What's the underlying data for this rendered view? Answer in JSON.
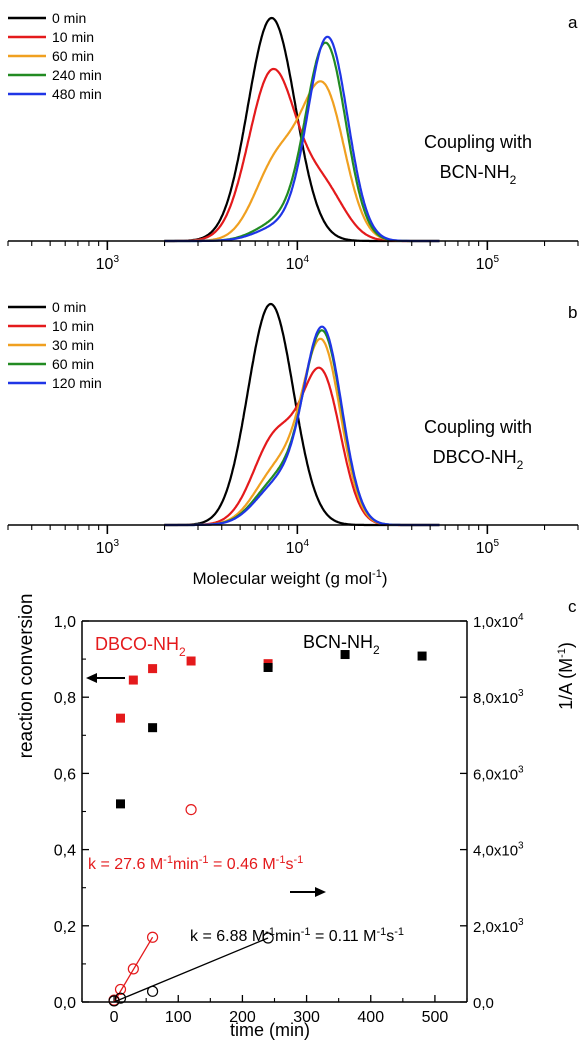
{
  "chart_data": [
    {
      "type": "line",
      "panel_label": "a",
      "annotation_line1": "Coupling with",
      "annotation_line2_base": "BCN-NH",
      "annotation_line2_sub": "2",
      "x_scale": "log",
      "xlim": [
        300,
        300000
      ],
      "x_ticks": [
        {
          "value": 1000,
          "base": "10",
          "exp": "3"
        },
        {
          "value": 10000,
          "base": "10",
          "exp": "4"
        },
        {
          "value": 100000,
          "base": "10",
          "exp": "5"
        }
      ],
      "x_log_peak_units": "log10 of molecular weight in g/mol",
      "series": [
        {
          "name": "0 min",
          "color": "#000000",
          "peaks": [
            {
              "mu": 3.865,
              "sigma": 0.125,
              "h": 1.0
            }
          ]
        },
        {
          "name": "10 min",
          "color": "#e41a1c",
          "peaks": [
            {
              "mu": 3.87,
              "sigma": 0.125,
              "h": 0.76
            },
            {
              "mu": 4.14,
              "sigma": 0.11,
              "h": 0.22
            }
          ]
        },
        {
          "name": "60 min",
          "color": "#f0a020",
          "peaks": [
            {
              "mu": 3.9,
              "sigma": 0.12,
              "h": 0.36
            },
            {
              "mu": 4.14,
              "sigma": 0.11,
              "h": 0.66
            }
          ]
        },
        {
          "name": "240 min",
          "color": "#228b22",
          "peaks": [
            {
              "mu": 3.9,
              "sigma": 0.12,
              "h": 0.08
            },
            {
              "mu": 4.15,
              "sigma": 0.105,
              "h": 0.88
            }
          ]
        },
        {
          "name": "480 min",
          "color": "#1f35e6",
          "peaks": [
            {
              "mu": 3.9,
              "sigma": 0.12,
              "h": 0.06
            },
            {
              "mu": 4.16,
              "sigma": 0.105,
              "h": 0.91
            }
          ]
        }
      ]
    },
    {
      "type": "line",
      "panel_label": "b",
      "annotation_line1": "Coupling with",
      "annotation_line2_base": "DBCO-NH",
      "annotation_line2_sub": "2",
      "x_scale": "log",
      "xlim": [
        300,
        300000
      ],
      "x_ticks": [
        {
          "value": 1000,
          "base": "10",
          "exp": "3"
        },
        {
          "value": 10000,
          "base": "10",
          "exp": "4"
        },
        {
          "value": 100000,
          "base": "10",
          "exp": "5"
        }
      ],
      "xlabel_base": "Molecular weight (g mol",
      "xlabel_exp": "-1",
      "xlabel_close": ")",
      "x_log_peak_units": "log10 of molecular weight in g/mol",
      "series": [
        {
          "name": "0 min",
          "color": "#000000",
          "peaks": [
            {
              "mu": 3.86,
              "sigma": 0.12,
              "h": 1.0
            }
          ]
        },
        {
          "name": "10 min",
          "color": "#e41a1c",
          "peaks": [
            {
              "mu": 3.89,
              "sigma": 0.12,
              "h": 0.4
            },
            {
              "mu": 4.13,
              "sigma": 0.1,
              "h": 0.65
            }
          ]
        },
        {
          "name": "30 min",
          "color": "#f0a020",
          "peaks": [
            {
              "mu": 3.9,
              "sigma": 0.12,
              "h": 0.25
            },
            {
              "mu": 4.13,
              "sigma": 0.1,
              "h": 0.8
            }
          ]
        },
        {
          "name": "60 min",
          "color": "#228b22",
          "peaks": [
            {
              "mu": 3.9,
              "sigma": 0.12,
              "h": 0.2
            },
            {
              "mu": 4.135,
              "sigma": 0.1,
              "h": 0.85
            }
          ]
        },
        {
          "name": "120 min",
          "color": "#1f35e6",
          "peaks": [
            {
              "mu": 3.9,
              "sigma": 0.12,
              "h": 0.18
            },
            {
              "mu": 4.135,
              "sigma": 0.1,
              "h": 0.87
            }
          ]
        }
      ]
    },
    {
      "type": "scatter",
      "panel_label": "c",
      "xlabel": "time (min)",
      "ylabel": "reaction conversion",
      "y2label_base": "1/A (M",
      "y2label_exp": "-1",
      "y2label_close": ")",
      "xlim": [
        -50,
        550
      ],
      "ylim": [
        0,
        1.0
      ],
      "y2lim": [
        0,
        10000
      ],
      "x_ticks": [
        "0",
        "100",
        "200",
        "300",
        "400",
        "500"
      ],
      "y_ticks": [
        "0,0",
        "0,2",
        "0,4",
        "0,6",
        "0,8",
        "1,0"
      ],
      "y2_ticks": [
        {
          "base": "0,0",
          "exp": ""
        },
        {
          "base": "2,0x10",
          "exp": "3"
        },
        {
          "base": "4,0x10",
          "exp": "3"
        },
        {
          "base": "6,0x10",
          "exp": "3"
        },
        {
          "base": "8,0x10",
          "exp": "3"
        },
        {
          "base": "1,0x10",
          "exp": "4"
        }
      ],
      "label_dbco_base": "DBCO-NH",
      "label_dbco_sub": "2",
      "label_bcn_base": "BCN-NH",
      "label_bcn_sub": "2",
      "series": [
        {
          "name": "DBCO-NH2 conversion",
          "marker": "filled-square",
          "color": "#e41a1c",
          "axis": "left",
          "x": [
            10,
            30,
            60,
            120,
            240
          ],
          "y": [
            0.745,
            0.845,
            0.875,
            0.895,
            0.888
          ]
        },
        {
          "name": "BCN-NH2 conversion",
          "marker": "filled-square",
          "color": "#000000",
          "axis": "left",
          "x": [
            10,
            60,
            240,
            360,
            480
          ],
          "y": [
            0.52,
            0.72,
            0.878,
            0.912,
            0.908
          ]
        },
        {
          "name": "DBCO-NH2 1/A",
          "marker": "open-circle",
          "color": "#e41a1c",
          "axis": "right",
          "x": [
            0,
            10,
            30,
            60,
            120
          ],
          "y": [
            50,
            330,
            870,
            1700,
            5050
          ]
        },
        {
          "name": "BCN-NH2 1/A",
          "marker": "open-circle",
          "color": "#000000",
          "axis": "right",
          "x": [
            0,
            10,
            60,
            240
          ],
          "y": [
            30,
            100,
            280,
            1680
          ]
        }
      ],
      "fits": [
        {
          "color": "#e41a1c",
          "x": [
            0,
            60
          ],
          "y": [
            0,
            1700
          ]
        },
        {
          "color": "#000000",
          "x": [
            0,
            240
          ],
          "y": [
            0,
            1680
          ]
        }
      ],
      "k_dbco": {
        "p1": "k = 27.6 M",
        "p1e": "-1",
        "p2": "min",
        "p2e": "-1",
        "p3": " = 0.46 M",
        "p3e": "-1",
        "p4": "s",
        "p4e": "-1"
      },
      "k_bcn": {
        "p1": "k = 6.88 M",
        "p1e": "-1",
        "p2": "min",
        "p2e": "-1",
        "p3": " = 0.11 M",
        "p3e": "-1",
        "p4": "s",
        "p4e": "-1"
      }
    }
  ]
}
